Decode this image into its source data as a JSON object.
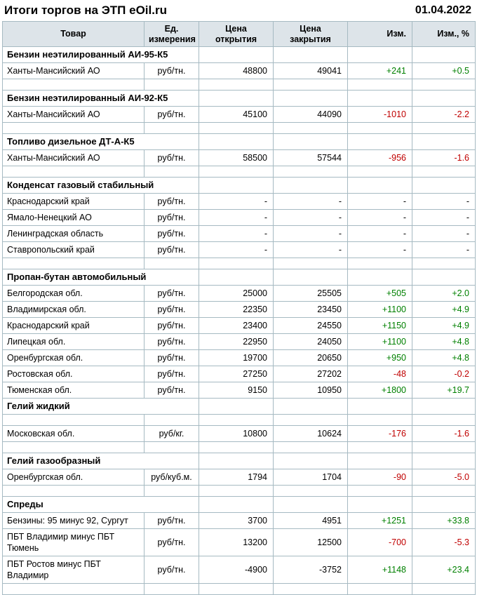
{
  "header": {
    "title": "Итоги торгов на ЭТП eOil.ru",
    "date": "01.04.2022"
  },
  "colors": {
    "positive": "#008000",
    "negative": "#c00000",
    "header_bg": "#dde4e9",
    "border": "#a6bac2"
  },
  "table": {
    "columns": [
      "Товар",
      "Ед.\nизмерения",
      "Цена\nоткрытия",
      "Цена\nзакрытия",
      "Изм.",
      "Изм., %"
    ],
    "rows": [
      {
        "type": "section",
        "label": "Бензин неэтилированный АИ-95-К5"
      },
      {
        "type": "data",
        "product": "Ханты-Мансийский АО",
        "unit": "руб/тн.",
        "open": "48800",
        "close": "49041",
        "change": "+241",
        "change_pct": "+0.5"
      },
      {
        "type": "spacer"
      },
      {
        "type": "section",
        "label": "Бензин неэтилированный АИ-92-К5"
      },
      {
        "type": "data",
        "product": "Ханты-Мансийский АО",
        "unit": "руб/тн.",
        "open": "45100",
        "close": "44090",
        "change": "-1010",
        "change_pct": "-2.2"
      },
      {
        "type": "spacer"
      },
      {
        "type": "section",
        "label": "Топливо дизельное ДТ-А-К5"
      },
      {
        "type": "data",
        "product": "Ханты-Мансийский АО",
        "unit": "руб/тн.",
        "open": "58500",
        "close": "57544",
        "change": "-956",
        "change_pct": "-1.6"
      },
      {
        "type": "spacer"
      },
      {
        "type": "section",
        "label": "Конденсат газовый стабильный"
      },
      {
        "type": "data",
        "product": "Краснодарский край",
        "unit": "руб/тн.",
        "open": "-",
        "close": "-",
        "change": "-",
        "change_pct": "-"
      },
      {
        "type": "data",
        "product": "Ямало-Ненецкий АО",
        "unit": "руб/тн.",
        "open": "-",
        "close": "-",
        "change": "-",
        "change_pct": "-"
      },
      {
        "type": "data",
        "product": "Ленинградская область",
        "unit": "руб/тн.",
        "open": "-",
        "close": "-",
        "change": "-",
        "change_pct": "-"
      },
      {
        "type": "data",
        "product": "Ставропольский край",
        "unit": "руб/тн.",
        "open": "-",
        "close": "-",
        "change": "-",
        "change_pct": "-"
      },
      {
        "type": "spacer"
      },
      {
        "type": "section",
        "label": "Пропан-бутан автомобильный"
      },
      {
        "type": "data",
        "product": "Белгородская обл.",
        "unit": "руб/тн.",
        "open": "25000",
        "close": "25505",
        "change": "+505",
        "change_pct": "+2.0"
      },
      {
        "type": "data",
        "product": "Владимирская обл.",
        "unit": "руб/тн.",
        "open": "22350",
        "close": "23450",
        "change": "+1100",
        "change_pct": "+4.9"
      },
      {
        "type": "data",
        "product": "Краснодарский край",
        "unit": "руб/тн.",
        "open": "23400",
        "close": "24550",
        "change": "+1150",
        "change_pct": "+4.9"
      },
      {
        "type": "data",
        "product": "Липецкая обл.",
        "unit": "руб/тн.",
        "open": "22950",
        "close": "24050",
        "change": "+1100",
        "change_pct": "+4.8"
      },
      {
        "type": "data",
        "product": "Оренбургская обл.",
        "unit": "руб/тн.",
        "open": "19700",
        "close": "20650",
        "change": "+950",
        "change_pct": "+4.8"
      },
      {
        "type": "data",
        "product": "Ростовская обл.",
        "unit": "руб/тн.",
        "open": "27250",
        "close": "27202",
        "change": "-48",
        "change_pct": "-0.2"
      },
      {
        "type": "data",
        "product": "Тюменская обл.",
        "unit": "руб/тн.",
        "open": "9150",
        "close": "10950",
        "change": "+1800",
        "change_pct": "+19.7"
      },
      {
        "type": "section",
        "label": "Гелий жидкий"
      },
      {
        "type": "spacer"
      },
      {
        "type": "data",
        "product": "Московская обл.",
        "unit": "руб/кг.",
        "open": "10800",
        "close": "10624",
        "change": "-176",
        "change_pct": "-1.6"
      },
      {
        "type": "spacer"
      },
      {
        "type": "section",
        "label": "Гелий газообразный"
      },
      {
        "type": "data",
        "product": "Оренбургская обл.",
        "unit": "руб/куб.м.",
        "open": "1794",
        "close": "1704",
        "change": "-90",
        "change_pct": "-5.0"
      },
      {
        "type": "spacer"
      },
      {
        "type": "section",
        "label": "Спреды"
      },
      {
        "type": "data",
        "product": "Бензины: 95 минус 92, Сургут",
        "unit": "руб/тн.",
        "open": "3700",
        "close": "4951",
        "change": "+1251",
        "change_pct": "+33.8"
      },
      {
        "type": "data",
        "product": "ПБТ Владимир минус ПБТ Тюмень",
        "unit": "руб/тн.",
        "open": "13200",
        "close": "12500",
        "change": "-700",
        "change_pct": "-5.3"
      },
      {
        "type": "data",
        "product": "ПБТ Ростов минус ПБТ Владимир",
        "unit": "руб/тн.",
        "open": "-4900",
        "close": "-3752",
        "change": "+1148",
        "change_pct": "+23.4"
      },
      {
        "type": "spacer"
      }
    ]
  }
}
